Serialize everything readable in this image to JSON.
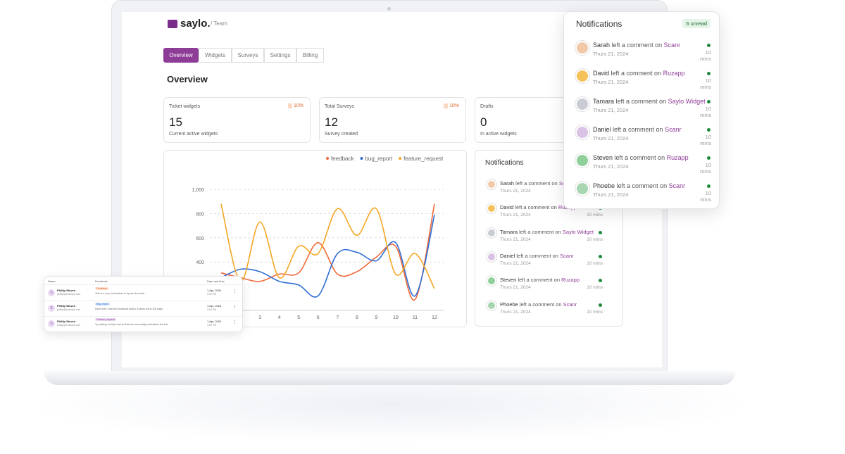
{
  "header": {
    "logo": "saylo.",
    "breadcrumb": "/ Team"
  },
  "tabs": [
    "Overview",
    "Widgets",
    "Surveys",
    "Settings",
    "Billing"
  ],
  "page_title": "Overview",
  "stats": [
    {
      "title": "Ticket widgets",
      "badge": "10%",
      "value": 15,
      "caption": "Current active widgets"
    },
    {
      "title": "Total Surveys",
      "badge": "10%",
      "value": 12,
      "caption": "Survey created"
    },
    {
      "title": "Drafts",
      "value": 0,
      "caption": "In active widgets"
    }
  ],
  "chart_data": {
    "type": "line",
    "x": [
      1,
      2,
      3,
      4,
      5,
      6,
      7,
      8,
      9,
      10,
      11,
      12
    ],
    "xlim": [
      1,
      12
    ],
    "xticks": [
      3,
      4,
      5,
      6,
      7,
      8,
      9,
      10,
      11,
      12
    ],
    "ylim": [
      0,
      1000
    ],
    "yticks": [
      {
        "value": 1000,
        "label": "1,000"
      },
      800,
      600,
      400
    ],
    "grid": true,
    "series": [
      {
        "name": "feedback",
        "color": "#f26a3a",
        "values": [
          310,
          270,
          240,
          300,
          310,
          560,
          300,
          320,
          440,
          530,
          90,
          880
        ]
      },
      {
        "name": "bug_report",
        "color": "#2f6fd6",
        "values": [
          270,
          340,
          320,
          240,
          210,
          120,
          470,
          480,
          410,
          560,
          120,
          790
        ]
      },
      {
        "name": "feature_request",
        "color": "#f5a623",
        "values": [
          880,
          240,
          730,
          270,
          530,
          470,
          840,
          620,
          840,
          300,
          470,
          180
        ]
      }
    ]
  },
  "notifications": {
    "title": "Notifications",
    "unread": "6 unread",
    "items": [
      {
        "name": "Sarah",
        "action": "left a comment on",
        "target": "Scanr",
        "date": "Thurs 21, 2024",
        "time": "10 mins"
      },
      {
        "name": "David",
        "action": "left a comment on",
        "target": "Ruzapp",
        "date": "Thurs 21, 2024",
        "time": "10 mins"
      },
      {
        "name": "Tamara",
        "action": "left a comment on",
        "target": "Saylo Widget",
        "date": "Thurs 21, 2024",
        "time": "10 mins"
      },
      {
        "name": "Daniel",
        "action": "left a comment on",
        "target": "Scanr",
        "date": "Thurs 21, 2024",
        "time": "10 mins"
      },
      {
        "name": "Steven",
        "action": "left a comment on",
        "target": "Ruzapp",
        "date": "Thurs 21, 2024",
        "time": "10 mins"
      },
      {
        "name": "Phoebe",
        "action": "left a comment on",
        "target": "Scanr",
        "date": "Thurs 21, 2024",
        "time": "10 mins"
      }
    ]
  },
  "table": {
    "headers": [
      "Name",
      "Feedback",
      "Date and time"
    ],
    "rows": [
      {
        "initial": "S",
        "name": "Phillip Steven",
        "email": "phillip@example.com",
        "tag": "Feedback",
        "text": "This is a very cool feature to try out nice work",
        "date": "1 Apr, 2024",
        "time": "2:02 PM"
      },
      {
        "initial": "S",
        "name": "Phillip Steven",
        "email": "phillip@example.com",
        "tag": "Bug_report",
        "text": "Each time I click the download button, it takes me to 404 page",
        "date": "1 Apr, 2024",
        "time": "3:00 PM"
      },
      {
        "initial": "S",
        "name": "Phillip Steven",
        "email": "phillip@example.com",
        "tag": "Feature_request",
        "text": "Try adding a helper text so that user can easily understand the icon",
        "date": "1 Apr, 2024",
        "time": "4:00 PM"
      }
    ]
  }
}
